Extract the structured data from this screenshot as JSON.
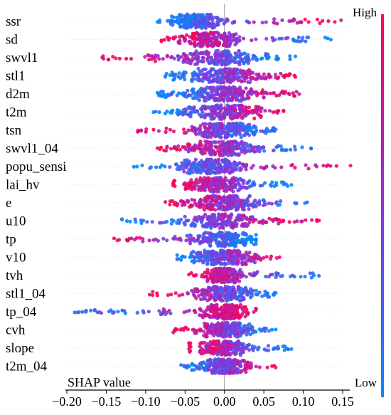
{
  "chart_data": {
    "type": "scatter",
    "subtype": "shap-beeswarm",
    "xlabel": "SHAP value",
    "xlim": [
      -0.2,
      0.15
    ],
    "x_ticks": [
      -0.2,
      -0.15,
      -0.1,
      -0.05,
      0.0,
      0.05,
      0.1,
      0.15
    ],
    "x_tick_labels": [
      "−0.20",
      "−0.15",
      "−0.10",
      "−0.05",
      "0.00",
      "0.05",
      "0.10",
      "0.15"
    ],
    "colorbar": {
      "high_label": "High",
      "low_label": "Low",
      "high_color": "#ff0052",
      "low_color": "#008bfb",
      "mid_color": "#8a33dd"
    },
    "features": [
      {
        "name": "ssr",
        "range": [
          -0.085,
          0.148
        ],
        "low_side": "negative",
        "center": -0.035,
        "spread": 0.018
      },
      {
        "name": "sd",
        "range": [
          -0.08,
          0.135
        ],
        "low_side": "positive",
        "center": -0.02,
        "spread": 0.02
      },
      {
        "name": "swvl1",
        "range": [
          -0.155,
          0.09
        ],
        "low_side": "positive",
        "center": -0.01,
        "spread": 0.03
      },
      {
        "name": "stl1",
        "range": [
          -0.075,
          0.09
        ],
        "low_side": "negative",
        "center": 0.0,
        "spread": 0.03
      },
      {
        "name": "d2m",
        "range": [
          -0.085,
          0.095
        ],
        "low_side": "negative",
        "center": 0.0,
        "spread": 0.03
      },
      {
        "name": "t2m",
        "range": [
          -0.09,
          0.075
        ],
        "low_side": "negative",
        "center": 0.0,
        "spread": 0.025
      },
      {
        "name": "tsn",
        "range": [
          -0.11,
          0.065
        ],
        "low_side": "positive",
        "center": 0.0,
        "spread": 0.022
      },
      {
        "name": "swvl1_04",
        "range": [
          -0.085,
          0.11
        ],
        "low_side": "positive",
        "center": 0.0,
        "spread": 0.025
      },
      {
        "name": "popu_sensi",
        "range": [
          -0.115,
          0.16
        ],
        "low_side": "negative",
        "center": -0.02,
        "spread": 0.02
      },
      {
        "name": "lai_hv",
        "range": [
          -0.065,
          0.085
        ],
        "low_side": "positive",
        "center": -0.01,
        "spread": 0.02
      },
      {
        "name": "e",
        "range": [
          -0.075,
          0.105
        ],
        "low_side": "positive",
        "center": 0.0,
        "spread": 0.022
      },
      {
        "name": "u10",
        "range": [
          -0.13,
          0.12
        ],
        "low_side": "negative",
        "center": 0.0,
        "spread": 0.025
      },
      {
        "name": "tp",
        "range": [
          -0.14,
          0.04
        ],
        "low_side": "positive",
        "center": 0.0,
        "spread": 0.02
      },
      {
        "name": "v10",
        "range": [
          -0.06,
          0.07
        ],
        "low_side": "negative",
        "center": 0.0,
        "spread": 0.02
      },
      {
        "name": "tvh",
        "range": [
          -0.045,
          0.12
        ],
        "low_side": "positive",
        "center": 0.0,
        "spread": 0.012
      },
      {
        "name": "stl1_04",
        "range": [
          -0.095,
          0.065
        ],
        "low_side": "positive",
        "center": 0.0,
        "spread": 0.02
      },
      {
        "name": "tp_04",
        "range": [
          -0.19,
          0.04
        ],
        "low_side": "negative",
        "center": 0.0,
        "spread": 0.015
      },
      {
        "name": "cvh",
        "range": [
          -0.065,
          0.065
        ],
        "low_side": "positive",
        "center": 0.0,
        "spread": 0.015
      },
      {
        "name": "slope",
        "range": [
          -0.045,
          0.085
        ],
        "low_side": "positive",
        "center": 0.0,
        "spread": 0.015
      },
      {
        "name": "t2m_04",
        "range": [
          -0.055,
          0.065
        ],
        "low_side": "negative",
        "center": 0.0,
        "spread": 0.015
      }
    ]
  }
}
